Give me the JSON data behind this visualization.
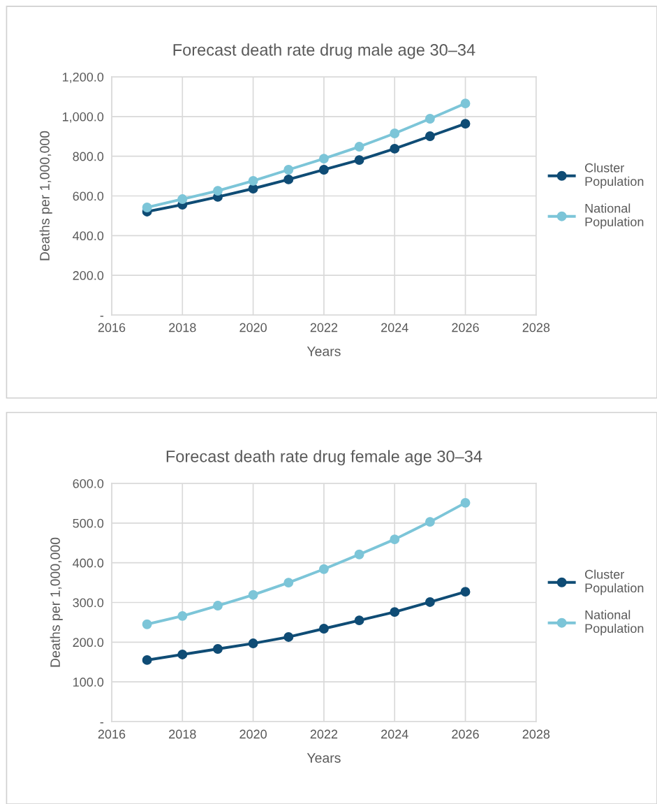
{
  "chart_data": [
    {
      "type": "line",
      "title": "Forecast death rate drug male age 30–34",
      "xlabel": "Years",
      "ylabel": "Deaths per 1,000,000",
      "x": [
        2017,
        2018,
        2019,
        2020,
        2021,
        2022,
        2023,
        2024,
        2025,
        2026
      ],
      "series": [
        {
          "name": "Cluster Population",
          "color": "#0f4c75",
          "values": [
            521,
            556,
            595,
            637,
            683,
            732,
            781,
            838,
            901,
            964
          ]
        },
        {
          "name": "National Population",
          "color": "#7cc5d8",
          "values": [
            542,
            584,
            626,
            676,
            732,
            788,
            848,
            915,
            989,
            1066
          ]
        }
      ],
      "xlim": [
        2016,
        2028
      ],
      "xticks": [
        2016,
        2018,
        2020,
        2022,
        2024,
        2026,
        2028
      ],
      "ylim": [
        0,
        1200
      ],
      "yticks": [
        {
          "value": 0,
          "label": "-"
        },
        {
          "value": 200,
          "label": "200.0"
        },
        {
          "value": 400,
          "label": "400.0"
        },
        {
          "value": 600,
          "label": "600.0"
        },
        {
          "value": 800,
          "label": "800.0"
        },
        {
          "value": 1000,
          "label": "1,000.0"
        },
        {
          "value": 1200,
          "label": "1,200.0"
        }
      ],
      "grid": true,
      "legend": "right",
      "marker": "circle",
      "line_style": "solid"
    },
    {
      "type": "line",
      "title": "Forecast death rate drug female age 30–34",
      "xlabel": "Years",
      "ylabel": "Deaths per 1,000,000",
      "x": [
        2017,
        2018,
        2019,
        2020,
        2021,
        2022,
        2023,
        2024,
        2025,
        2026
      ],
      "series": [
        {
          "name": "Cluster Population",
          "color": "#0f4c75",
          "values": [
            155,
            169,
            183,
            197,
            213,
            234,
            255,
            276,
            301,
            327
          ]
        },
        {
          "name": "National Population",
          "color": "#7cc5d8",
          "values": [
            245,
            266,
            292,
            319,
            350,
            384,
            421,
            459,
            503,
            551
          ]
        }
      ],
      "xlim": [
        2016,
        2028
      ],
      "xticks": [
        2016,
        2018,
        2020,
        2022,
        2024,
        2026,
        2028
      ],
      "ylim": [
        0,
        600
      ],
      "yticks": [
        {
          "value": 0,
          "label": "-"
        },
        {
          "value": 100,
          "label": "100.0"
        },
        {
          "value": 200,
          "label": "200.0"
        },
        {
          "value": 300,
          "label": "300.0"
        },
        {
          "value": 400,
          "label": "400.0"
        },
        {
          "value": 500,
          "label": "500.0"
        },
        {
          "value": 600,
          "label": "600.0"
        }
      ],
      "grid": true,
      "legend": "right",
      "marker": "circle",
      "line_style": "solid"
    }
  ]
}
